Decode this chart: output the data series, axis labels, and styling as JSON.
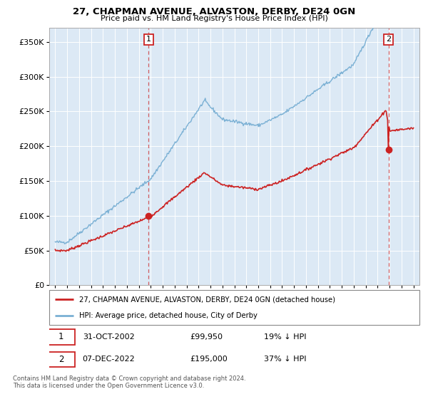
{
  "title": "27, CHAPMAN AVENUE, ALVASTON, DERBY, DE24 0GN",
  "subtitle": "Price paid vs. HM Land Registry's House Price Index (HPI)",
  "sale1_date": "31-OCT-2002",
  "sale1_price": 99950,
  "sale1_label": "19% ↓ HPI",
  "sale2_date": "07-DEC-2022",
  "sale2_price": 195000,
  "sale2_label": "37% ↓ HPI",
  "legend_line1": "27, CHAPMAN AVENUE, ALVASTON, DERBY, DE24 0GN (detached house)",
  "legend_line2": "HPI: Average price, detached house, City of Derby",
  "footnote1": "Contains HM Land Registry data © Crown copyright and database right 2024.",
  "footnote2": "This data is licensed under the Open Government Licence v3.0.",
  "hpi_color": "#7ab0d4",
  "price_color": "#cc2222",
  "plot_bg": "#dce9f5",
  "ylim": [
    0,
    370000
  ],
  "yticks": [
    0,
    50000,
    100000,
    150000,
    200000,
    250000,
    300000,
    350000
  ],
  "sale1_x_year": 2002.83,
  "sale2_x_year": 2022.92,
  "xmin": 1994.5,
  "xmax": 2025.5
}
